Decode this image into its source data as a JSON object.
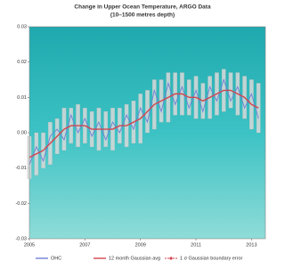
{
  "chart_data": {
    "type": "line",
    "title": "Change in Upper Ocean Temperature, ARGO Data",
    "subtitle": "(10–1500 metres depth)",
    "x": [
      2005,
      2005.25,
      2005.5,
      2005.75,
      2006,
      2006.25,
      2006.5,
      2006.75,
      2007,
      2007.25,
      2007.5,
      2007.75,
      2008,
      2008.25,
      2008.5,
      2008.75,
      2009,
      2009.25,
      2009.5,
      2009.75,
      2010,
      2010.25,
      2010.5,
      2010.75,
      2011,
      2011.25,
      2011.5,
      2011.75,
      2012,
      2012.25,
      2012.5,
      2012.75,
      2013,
      2013.25
    ],
    "series": [
      {
        "name": "OHC",
        "color": "#6f7fd6",
        "values": [
          -0.009,
          -0.004,
          -0.008,
          -0.001,
          0.001,
          -0.002,
          0.005,
          0.0,
          0.004,
          -0.001,
          0.003,
          -0.002,
          0.003,
          0.0,
          0.005,
          0.001,
          0.007,
          0.003,
          0.012,
          0.006,
          0.014,
          0.008,
          0.013,
          0.007,
          0.012,
          0.006,
          0.013,
          0.009,
          0.015,
          0.009,
          0.013,
          0.007,
          0.011,
          0.004
        ]
      },
      {
        "name": "12 month Gaussian avg",
        "color": "#d2454f",
        "values": [
          -0.007,
          -0.006,
          -0.005,
          -0.003,
          -0.001,
          0.001,
          0.002,
          0.002,
          0.002,
          0.001,
          0.001,
          0.001,
          0.001,
          0.002,
          0.002,
          0.003,
          0.004,
          0.006,
          0.008,
          0.009,
          0.01,
          0.011,
          0.011,
          0.01,
          0.01,
          0.009,
          0.01,
          0.011,
          0.012,
          0.012,
          0.011,
          0.01,
          0.008,
          0.007
        ]
      },
      {
        "name": "1 σ Gaussian boundary error",
        "color": "#d9d9d9",
        "values": [
          0.006,
          0.006,
          0.005,
          0.006,
          0.005,
          0.006,
          0.005,
          0.006,
          0.005,
          0.005,
          0.006,
          0.005,
          0.006,
          0.005,
          0.006,
          0.006,
          0.007,
          0.006,
          0.007,
          0.006,
          0.007,
          0.006,
          0.006,
          0.005,
          0.006,
          0.005,
          0.006,
          0.006,
          0.006,
          0.005,
          0.006,
          0.006,
          0.007,
          0.007
        ]
      }
    ],
    "xlim": [
      2005,
      2013.5
    ],
    "xticks": [
      2005,
      2007,
      2009,
      2011,
      2013
    ],
    "ylim": [
      -0.03,
      0.03
    ],
    "yticks": [
      -0.03,
      -0.02,
      -0.01,
      {
        "value": 0,
        "label": "0.00"
      },
      0.01,
      0.02,
      0.03
    ],
    "grid": false,
    "legend": "bottom"
  }
}
